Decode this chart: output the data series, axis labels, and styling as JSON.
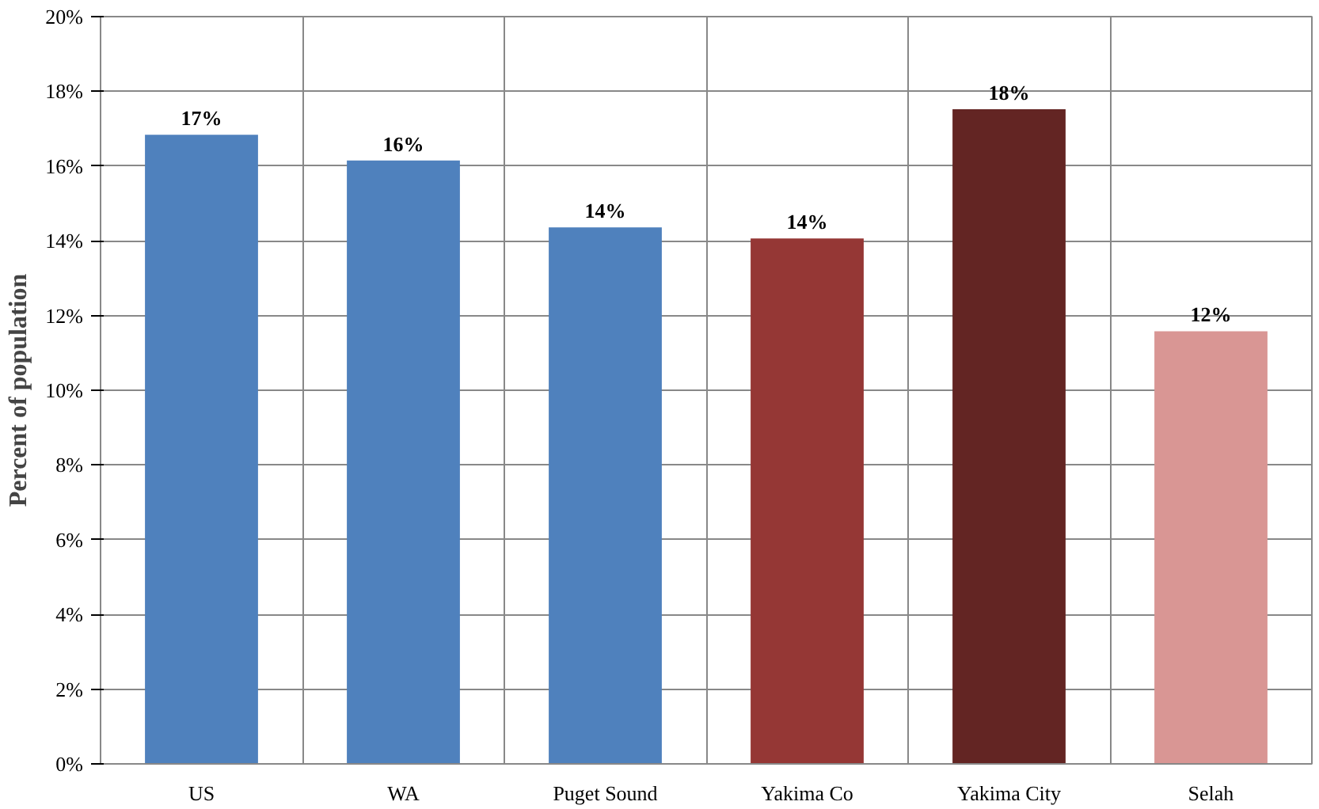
{
  "chart_data": {
    "type": "bar",
    "ylabel": "Percent of population",
    "categories": [
      "US",
      "WA",
      "Puget Sound",
      "Yakima Co",
      "Yakima City",
      "Selah"
    ],
    "values": [
      16.84,
      16.15,
      14.36,
      14.06,
      17.52,
      11.58
    ],
    "colors": [
      "#4f81bd",
      "#4f81bd",
      "#4f81bd",
      "#953735",
      "#632523",
      "#d99694"
    ],
    "value_labels": [
      "17%",
      "16%",
      "14%",
      "14%",
      "18%",
      "12%"
    ],
    "ylim": [
      0,
      20
    ],
    "yticks": [
      {
        "value": 0,
        "label": "0%"
      },
      {
        "value": 2,
        "label": "2%"
      },
      {
        "value": 4,
        "label": "4%"
      },
      {
        "value": 6,
        "label": "6%"
      },
      {
        "value": 8,
        "label": "8%"
      },
      {
        "value": 10,
        "label": "10%"
      },
      {
        "value": 12,
        "label": "12%"
      },
      {
        "value": 14,
        "label": "14%"
      },
      {
        "value": 16,
        "label": "16%"
      },
      {
        "value": 18,
        "label": "18%"
      },
      {
        "value": 20,
        "label": "20%"
      }
    ],
    "grid": true
  }
}
